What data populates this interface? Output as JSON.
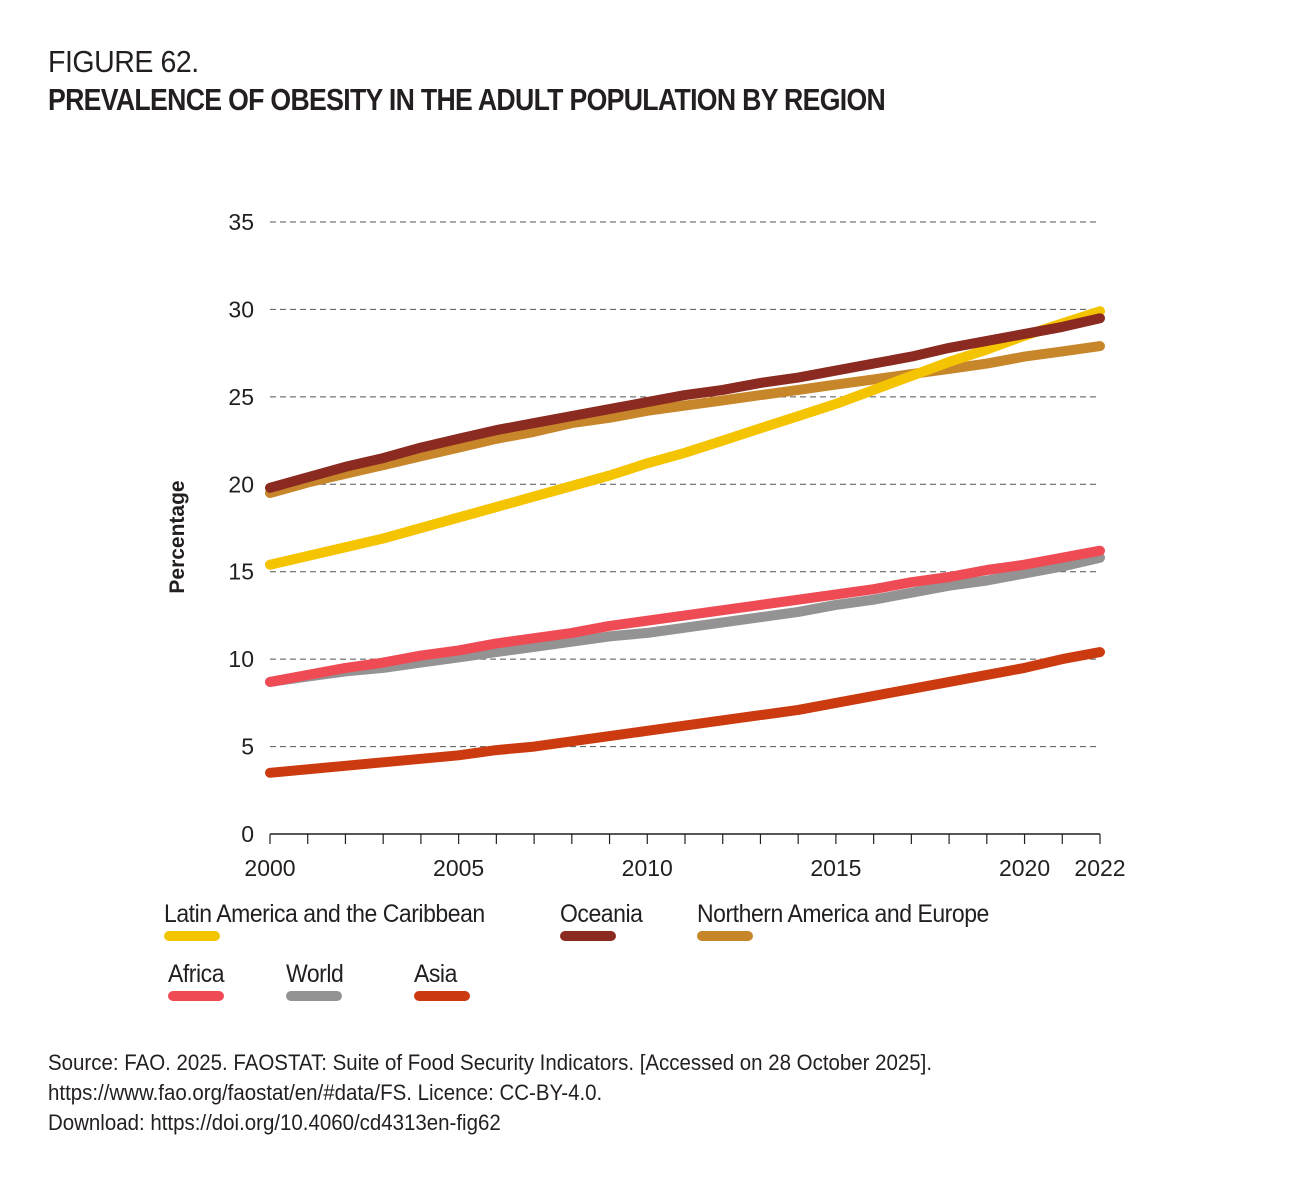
{
  "header": {
    "figure_label": "FIGURE 62.",
    "title": "PREVALENCE OF OBESITY IN THE ADULT POPULATION BY REGION"
  },
  "chart_data": {
    "type": "line",
    "title": "PREVALENCE OF OBESITY IN THE ADULT POPULATION BY REGION",
    "xlabel": "",
    "ylabel": "Percentage",
    "xlim": [
      2000,
      2022
    ],
    "ylim": [
      0,
      35
    ],
    "yticks": [
      "0",
      "5",
      "10",
      "15",
      "20",
      "25",
      "30",
      "35"
    ],
    "xticks": [
      "2000",
      "2005",
      "2010",
      "2015",
      "2020",
      "2022"
    ],
    "grid": "horizontal dashed",
    "legend_position": "bottom",
    "x": [
      2000,
      2001,
      2002,
      2003,
      2004,
      2005,
      2006,
      2007,
      2008,
      2009,
      2010,
      2011,
      2012,
      2013,
      2014,
      2015,
      2016,
      2017,
      2018,
      2019,
      2020,
      2021,
      2022
    ],
    "series": [
      {
        "name": "Latin America and the Caribbean",
        "color": "#F5C400",
        "values": [
          15.4,
          15.9,
          16.4,
          16.9,
          17.5,
          18.1,
          18.7,
          19.3,
          19.9,
          20.5,
          21.2,
          21.8,
          22.5,
          23.2,
          23.9,
          24.6,
          25.4,
          26.2,
          27.0,
          27.7,
          28.5,
          29.2,
          29.9
        ]
      },
      {
        "name": "Oceania",
        "color": "#8B2A20",
        "values": [
          19.8,
          20.4,
          21.0,
          21.5,
          22.1,
          22.6,
          23.1,
          23.5,
          23.9,
          24.3,
          24.7,
          25.1,
          25.4,
          25.8,
          26.1,
          26.5,
          26.9,
          27.3,
          27.8,
          28.2,
          28.6,
          29.0,
          29.5
        ]
      },
      {
        "name": "Northern America and Europe",
        "color": "#C8862B",
        "values": [
          19.5,
          20.1,
          20.6,
          21.1,
          21.6,
          22.1,
          22.6,
          23.0,
          23.5,
          23.8,
          24.2,
          24.5,
          24.8,
          25.1,
          25.4,
          25.7,
          26.0,
          26.3,
          26.6,
          26.9,
          27.3,
          27.6,
          27.9
        ]
      },
      {
        "name": "Africa",
        "color": "#EE4B55",
        "values": [
          8.7,
          9.1,
          9.5,
          9.8,
          10.2,
          10.5,
          10.9,
          11.2,
          11.5,
          11.9,
          12.2,
          12.5,
          12.8,
          13.1,
          13.4,
          13.7,
          14.0,
          14.4,
          14.7,
          15.1,
          15.4,
          15.8,
          16.2
        ]
      },
      {
        "name": "World",
        "color": "#939393",
        "values": [
          8.7,
          9.0,
          9.3,
          9.5,
          9.8,
          10.1,
          10.4,
          10.7,
          11.0,
          11.3,
          11.5,
          11.8,
          12.1,
          12.4,
          12.7,
          13.1,
          13.4,
          13.8,
          14.2,
          14.5,
          14.9,
          15.3,
          15.8
        ]
      },
      {
        "name": "Asia",
        "color": "#CC3A10",
        "values": [
          3.5,
          3.7,
          3.9,
          4.1,
          4.3,
          4.5,
          4.8,
          5.0,
          5.3,
          5.6,
          5.9,
          6.2,
          6.5,
          6.8,
          7.1,
          7.5,
          7.9,
          8.3,
          8.7,
          9.1,
          9.5,
          10.0,
          10.4
        ]
      }
    ]
  },
  "legend": {
    "items": [
      {
        "label": "Latin America and the Caribbean",
        "color": "#F5C400"
      },
      {
        "label": "Oceania",
        "color": "#8B2A20"
      },
      {
        "label": "Northern America and Europe",
        "color": "#C8862B"
      },
      {
        "label": "Africa",
        "color": "#EE4B55"
      },
      {
        "label": "World",
        "color": "#939393"
      },
      {
        "label": "Asia",
        "color": "#CC3A10"
      }
    ]
  },
  "source": {
    "line1": "Source: FAO. 2025. FAOSTAT: Suite of Food Security Indicators. [Accessed on 28 October 2025].",
    "line2": "https://www.fao.org/faostat/en/#data/FS. Licence: CC-BY-4.0.",
    "line3": "Download: https://doi.org/10.4060/cd4313en-fig62"
  }
}
